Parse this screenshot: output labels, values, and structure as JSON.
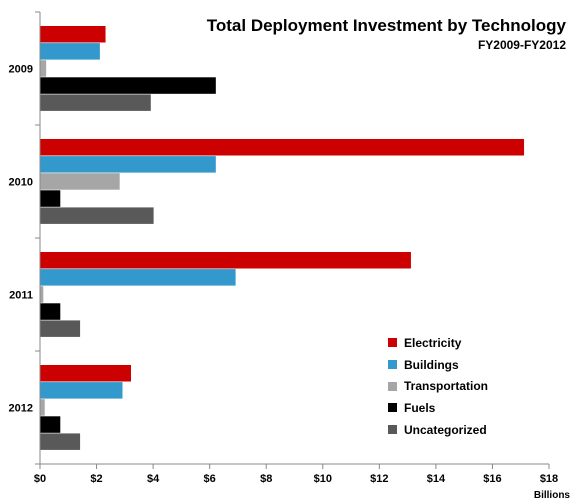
{
  "chart_data": {
    "type": "bar",
    "orientation": "horizontal",
    "title": "Total Deployment Investment by Technology",
    "subtitle": "FY2009-FY2012",
    "categories": [
      "2009",
      "2010",
      "2011",
      "2012"
    ],
    "series": [
      {
        "name": "Electricity",
        "color": "#cc0000",
        "values": [
          2.3,
          17.1,
          13.1,
          3.2
        ]
      },
      {
        "name": "Buildings",
        "color": "#3399cc",
        "values": [
          2.1,
          6.2,
          6.9,
          2.9
        ]
      },
      {
        "name": "Transportation",
        "color": "#a6a6a6",
        "values": [
          0.2,
          2.8,
          0.1,
          0.15
        ]
      },
      {
        "name": "Fuels",
        "color": "#000000",
        "values": [
          6.2,
          0.7,
          0.7,
          0.7
        ]
      },
      {
        "name": "Uncategorized",
        "color": "#595959",
        "values": [
          3.9,
          4.0,
          1.4,
          1.4
        ]
      }
    ],
    "xlim": [
      0,
      18
    ],
    "xticks": [
      0,
      2,
      4,
      6,
      8,
      10,
      12,
      14,
      16,
      18
    ],
    "xtick_labels": [
      "$0",
      "$2",
      "$4",
      "$6",
      "$8",
      "$10",
      "$12",
      "$14",
      "$16",
      "$18"
    ],
    "x_units": "Billions",
    "legend_position": "lower-right",
    "grid": false
  }
}
